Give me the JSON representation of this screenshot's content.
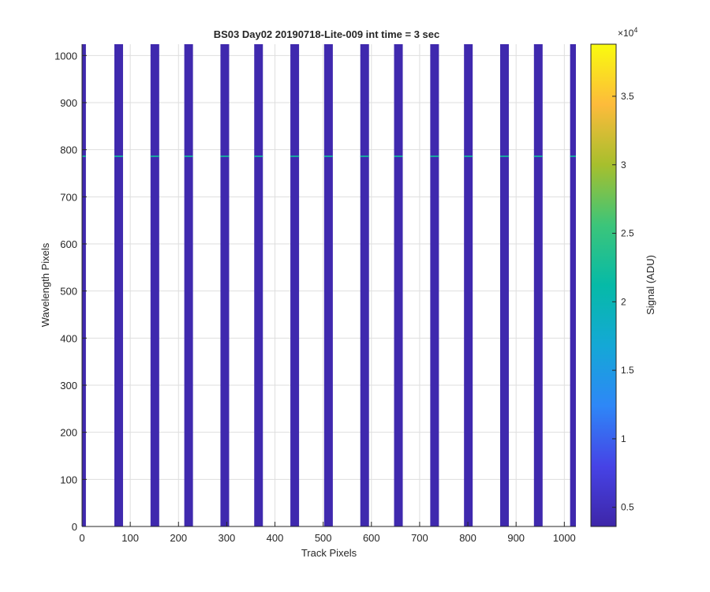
{
  "chart_data": {
    "type": "heatmap",
    "title": "BS03 Day02 20190718-Lite-009 int time = 3 sec",
    "xlabel": "Track Pixels",
    "ylabel": "Wavelength Pixels",
    "xlim": [
      0,
      1024
    ],
    "ylim": [
      0,
      1024
    ],
    "grid": true,
    "xticks": [
      0,
      100,
      200,
      300,
      400,
      500,
      600,
      700,
      800,
      900,
      1000
    ],
    "yticks": [
      0,
      100,
      200,
      300,
      400,
      500,
      600,
      700,
      800,
      900,
      1000
    ],
    "background_value": 3500,
    "stripe_value": 4000,
    "stripes": [
      {
        "x0": 0,
        "x1": 8
      },
      {
        "x0": 67,
        "x1": 85
      },
      {
        "x0": 142,
        "x1": 160
      },
      {
        "x0": 212,
        "x1": 230
      },
      {
        "x0": 287,
        "x1": 305
      },
      {
        "x0": 357,
        "x1": 375
      },
      {
        "x0": 432,
        "x1": 450
      },
      {
        "x0": 502,
        "x1": 520
      },
      {
        "x0": 577,
        "x1": 595
      },
      {
        "x0": 647,
        "x1": 665
      },
      {
        "x0": 722,
        "x1": 740
      },
      {
        "x0": 792,
        "x1": 810
      },
      {
        "x0": 867,
        "x1": 885
      },
      {
        "x0": 937,
        "x1": 955
      },
      {
        "x0": 1012,
        "x1": 1024
      }
    ],
    "bright_line": {
      "y": 786,
      "value": 22000
    },
    "colorbar": {
      "label": "Signal (ADU)",
      "exponent_label": "×10",
      "exponent": "4",
      "clim": [
        3600,
        38800
      ],
      "ticks": [
        0.5,
        1,
        1.5,
        2,
        2.5,
        3,
        3.5
      ],
      "tick_labels": [
        "0.5",
        "1",
        "1.5",
        "2",
        "2.5",
        "3",
        "3.5"
      ],
      "colormap": "parula"
    }
  }
}
